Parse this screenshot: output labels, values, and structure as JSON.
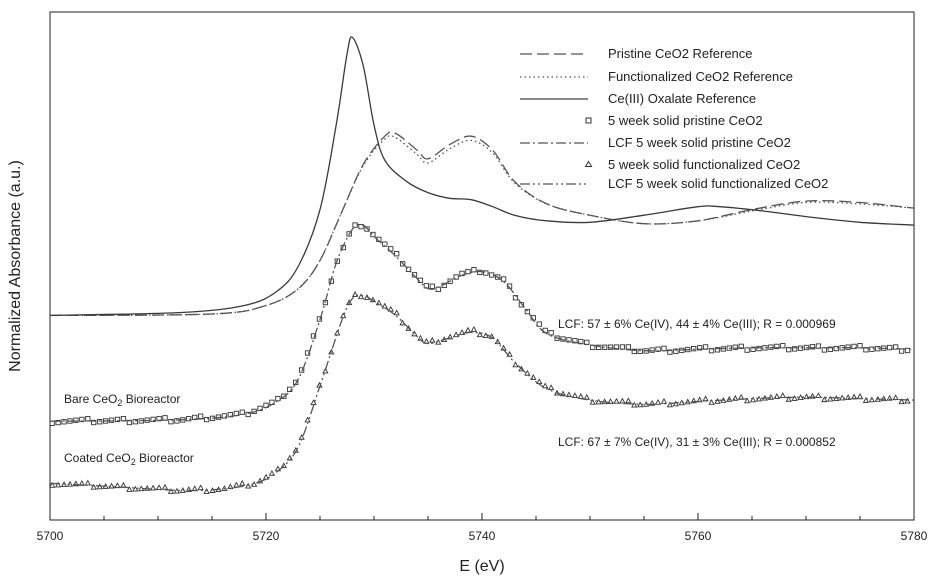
{
  "chart_data": {
    "type": "line",
    "xlabel": "E (eV)",
    "ylabel": "Normalized Absorbance (a.u.)",
    "xlim": [
      5700,
      5780
    ],
    "ylim": [
      0,
      3.6
    ],
    "x_ticks": [
      "5700",
      "5720",
      "5740",
      "5760",
      "5780"
    ],
    "legend": {
      "position": "top-right",
      "entries": [
        {
          "label": "Pristine CeO2 Reference",
          "style": "dashed"
        },
        {
          "label": "Functionalized CeO2 Reference",
          "style": "dotted"
        },
        {
          "label": "Ce(III) Oxalate Reference",
          "style": "solid"
        },
        {
          "label": "5 week solid pristine CeO2",
          "style": "square-marker"
        },
        {
          "label": "LCF 5 week solid pristine CeO2",
          "style": "dashdot"
        },
        {
          "label": "5 week solid functionalized CeO2",
          "style": "triangle-marker"
        },
        {
          "label": "LCF 5 week solid functionalized CeO2",
          "style": "dashdotdot"
        }
      ]
    },
    "annotations": [
      "LCF: 57 ± 6% Ce(IV), 44 ± 4% Ce(III); R = 0.000969",
      "LCF: 67 ± 7% Ce(IV), 31 ± 3% Ce(III); R = 0.000852"
    ],
    "curve_labels": {
      "bare": {
        "prefix": "Bare CeO",
        "sub": "2",
        "suffix": " Bioreactor"
      },
      "coated": {
        "prefix": "Coated CeO",
        "sub": "2",
        "suffix": " Bioreactor"
      }
    },
    "series": [
      {
        "name": "Pristine CeO2 Reference",
        "style": "dashed",
        "points": [
          [
            5700,
            1.45
          ],
          [
            5715,
            1.46
          ],
          [
            5720,
            1.52
          ],
          [
            5723,
            1.64
          ],
          [
            5725,
            1.84
          ],
          [
            5727,
            2.18
          ],
          [
            5729,
            2.52
          ],
          [
            5731,
            2.72
          ],
          [
            5732,
            2.74
          ],
          [
            5734,
            2.62
          ],
          [
            5735,
            2.56
          ],
          [
            5737,
            2.66
          ],
          [
            5739,
            2.72
          ],
          [
            5741,
            2.62
          ],
          [
            5743,
            2.4
          ],
          [
            5746,
            2.24
          ],
          [
            5750,
            2.16
          ],
          [
            5755,
            2.1
          ],
          [
            5760,
            2.12
          ],
          [
            5765,
            2.2
          ],
          [
            5770,
            2.26
          ],
          [
            5775,
            2.25
          ],
          [
            5780,
            2.21
          ]
        ]
      },
      {
        "name": "Functionalized CeO2 Reference",
        "style": "dotted",
        "points": [
          [
            5700,
            1.45
          ],
          [
            5715,
            1.46
          ],
          [
            5720,
            1.52
          ],
          [
            5723,
            1.64
          ],
          [
            5725,
            1.84
          ],
          [
            5727,
            2.18
          ],
          [
            5729,
            2.51
          ],
          [
            5731,
            2.7
          ],
          [
            5732,
            2.71
          ],
          [
            5734,
            2.59
          ],
          [
            5735,
            2.53
          ],
          [
            5737,
            2.63
          ],
          [
            5739,
            2.69
          ],
          [
            5741,
            2.6
          ],
          [
            5743,
            2.39
          ],
          [
            5746,
            2.24
          ],
          [
            5750,
            2.16
          ],
          [
            5755,
            2.1
          ],
          [
            5760,
            2.12
          ],
          [
            5765,
            2.19
          ],
          [
            5770,
            2.25
          ],
          [
            5775,
            2.24
          ],
          [
            5780,
            2.21
          ]
        ]
      },
      {
        "name": "Ce(III) Oxalate Reference",
        "style": "solid",
        "points": [
          [
            5700,
            1.45
          ],
          [
            5712,
            1.47
          ],
          [
            5718,
            1.52
          ],
          [
            5721,
            1.62
          ],
          [
            5723,
            1.8
          ],
          [
            5725,
            2.2
          ],
          [
            5726.5,
            2.8
          ],
          [
            5727.5,
            3.3
          ],
          [
            5728,
            3.42
          ],
          [
            5729,
            3.22
          ],
          [
            5730,
            2.8
          ],
          [
            5731,
            2.55
          ],
          [
            5733,
            2.4
          ],
          [
            5735,
            2.32
          ],
          [
            5737,
            2.28
          ],
          [
            5739,
            2.27
          ],
          [
            5741,
            2.22
          ],
          [
            5743,
            2.16
          ],
          [
            5746,
            2.12
          ],
          [
            5750,
            2.11
          ],
          [
            5755,
            2.16
          ],
          [
            5760,
            2.22
          ],
          [
            5762,
            2.22
          ],
          [
            5766,
            2.19
          ],
          [
            5770,
            2.15
          ],
          [
            5775,
            2.11
          ],
          [
            5780,
            2.09
          ]
        ]
      },
      {
        "name": "5 week solid pristine CeO2",
        "style": "square-marker",
        "points": [
          [
            5700,
            0.7
          ],
          [
            5712,
            0.71
          ],
          [
            5718,
            0.75
          ],
          [
            5721,
            0.84
          ],
          [
            5723,
            1.0
          ],
          [
            5725,
            1.42
          ],
          [
            5726.5,
            1.82
          ],
          [
            5728,
            2.07
          ],
          [
            5729,
            2.1
          ],
          [
            5730,
            2.02
          ],
          [
            5732,
            1.88
          ],
          [
            5734,
            1.72
          ],
          [
            5735,
            1.64
          ],
          [
            5736,
            1.65
          ],
          [
            5738,
            1.74
          ],
          [
            5740,
            1.77
          ],
          [
            5742,
            1.7
          ],
          [
            5744,
            1.5
          ],
          [
            5746,
            1.32
          ],
          [
            5750,
            1.24
          ],
          [
            5755,
            1.2
          ],
          [
            5760,
            1.21
          ],
          [
            5765,
            1.22
          ],
          [
            5770,
            1.22
          ],
          [
            5775,
            1.22
          ],
          [
            5780,
            1.21
          ]
        ]
      },
      {
        "name": "LCF 5 week solid pristine CeO2",
        "style": "dashdot",
        "points": [
          [
            5700,
            0.7
          ],
          [
            5712,
            0.71
          ],
          [
            5718,
            0.75
          ],
          [
            5721,
            0.84
          ],
          [
            5723,
            1.0
          ],
          [
            5725,
            1.42
          ],
          [
            5726.5,
            1.82
          ],
          [
            5728,
            2.06
          ],
          [
            5729,
            2.09
          ],
          [
            5730,
            2.01
          ],
          [
            5732,
            1.87
          ],
          [
            5734,
            1.71
          ],
          [
            5735,
            1.64
          ],
          [
            5736,
            1.65
          ],
          [
            5738,
            1.73
          ],
          [
            5740,
            1.76
          ],
          [
            5742,
            1.69
          ],
          [
            5744,
            1.5
          ],
          [
            5746,
            1.32
          ],
          [
            5750,
            1.24
          ],
          [
            5755,
            1.2
          ],
          [
            5760,
            1.21
          ],
          [
            5765,
            1.22
          ],
          [
            5770,
            1.22
          ],
          [
            5775,
            1.22
          ],
          [
            5780,
            1.21
          ]
        ]
      },
      {
        "name": "5 week solid functionalized CeO2",
        "style": "triangle-marker",
        "points": [
          [
            5700,
            0.26
          ],
          [
            5705,
            0.24
          ],
          [
            5712,
            0.21
          ],
          [
            5716,
            0.22
          ],
          [
            5719,
            0.26
          ],
          [
            5721,
            0.34
          ],
          [
            5723,
            0.52
          ],
          [
            5725,
            0.95
          ],
          [
            5727,
            1.42
          ],
          [
            5728,
            1.58
          ],
          [
            5729,
            1.6
          ],
          [
            5730,
            1.56
          ],
          [
            5732,
            1.46
          ],
          [
            5734,
            1.3
          ],
          [
            5735,
            1.25
          ],
          [
            5737,
            1.3
          ],
          [
            5739,
            1.34
          ],
          [
            5741,
            1.3
          ],
          [
            5743,
            1.12
          ],
          [
            5746,
            0.93
          ],
          [
            5750,
            0.85
          ],
          [
            5755,
            0.82
          ],
          [
            5760,
            0.84
          ],
          [
            5765,
            0.86
          ],
          [
            5770,
            0.87
          ],
          [
            5775,
            0.86
          ],
          [
            5780,
            0.85
          ]
        ]
      },
      {
        "name": "LCF 5 week solid functionalized CeO2",
        "style": "dashdotdot",
        "points": [
          [
            5700,
            0.26
          ],
          [
            5705,
            0.24
          ],
          [
            5712,
            0.21
          ],
          [
            5716,
            0.22
          ],
          [
            5719,
            0.26
          ],
          [
            5721,
            0.34
          ],
          [
            5723,
            0.52
          ],
          [
            5725,
            0.95
          ],
          [
            5727,
            1.41
          ],
          [
            5728,
            1.57
          ],
          [
            5729,
            1.59
          ],
          [
            5730,
            1.55
          ],
          [
            5732,
            1.45
          ],
          [
            5734,
            1.3
          ],
          [
            5735,
            1.25
          ],
          [
            5737,
            1.29
          ],
          [
            5739,
            1.33
          ],
          [
            5741,
            1.29
          ],
          [
            5743,
            1.12
          ],
          [
            5746,
            0.93
          ],
          [
            5750,
            0.85
          ],
          [
            5755,
            0.82
          ],
          [
            5760,
            0.84
          ],
          [
            5765,
            0.86
          ],
          [
            5770,
            0.87
          ],
          [
            5775,
            0.86
          ],
          [
            5780,
            0.85
          ]
        ]
      }
    ]
  }
}
